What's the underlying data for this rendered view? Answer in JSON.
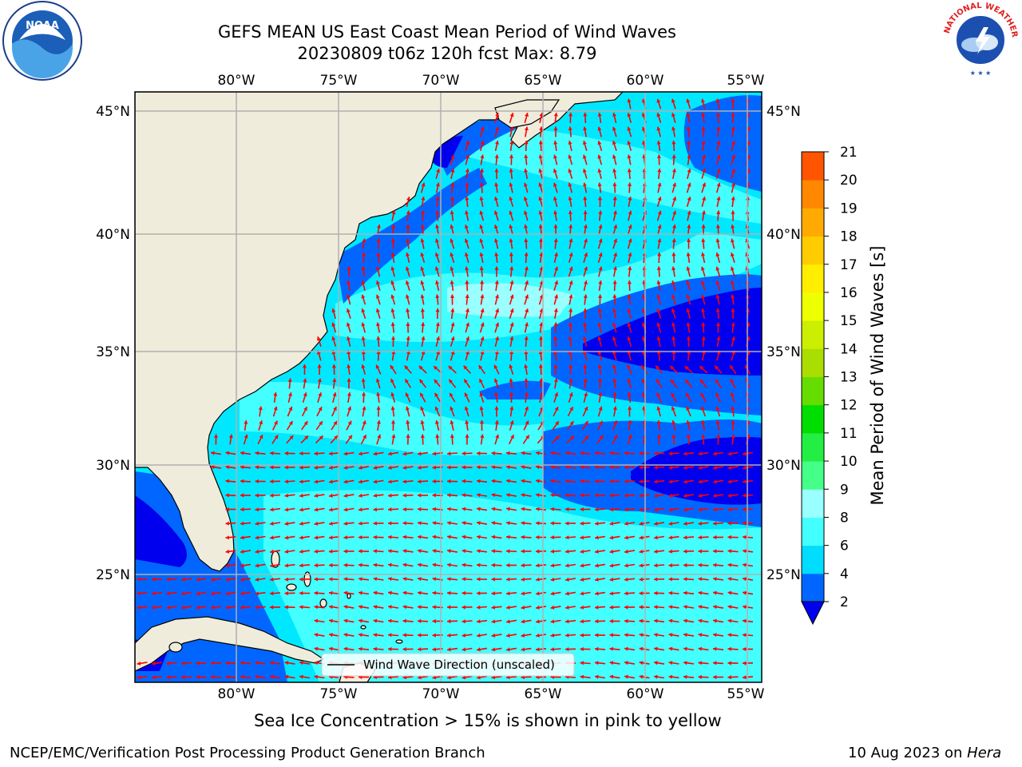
{
  "header": {
    "title_line1": "GEFS MEAN US East Coast Mean Period of Wind Waves",
    "title_line2": "20230809 t06z 120h fcst   Max: 8.79"
  },
  "map": {
    "lon_labels": [
      "80°W",
      "75°W",
      "70°W",
      "65°W",
      "60°W",
      "55°W"
    ],
    "lat_labels": [
      "45°N",
      "40°N",
      "35°N",
      "30°N",
      "25°N"
    ],
    "legend_label": "Wind Wave Direction (unscaled)",
    "arrow_color": "#ff0000",
    "land_color": "#efecdc",
    "grid_color": "#b0b0b0"
  },
  "colorbar": {
    "label": "Mean Period of Wind Waves [s]",
    "ticks": [
      "2",
      "4",
      "6",
      "8",
      "9",
      "10",
      "11",
      "12",
      "13",
      "14",
      "15",
      "16",
      "17",
      "18",
      "19",
      "20",
      "21"
    ],
    "colors": [
      "#0066ff",
      "#00ddff",
      "#44ffff",
      "#99ffff",
      "#44ff88",
      "#22ee44",
      "#00dd00",
      "#66dd00",
      "#aadd00",
      "#ccee00",
      "#eeff00",
      "#ffee00",
      "#ffcc00",
      "#ffaa00",
      "#ff8800",
      "#ff5500",
      "#ff2200",
      "#ff0000"
    ],
    "under_color": "#0000ee"
  },
  "logos": {
    "noaa_text": "NOAA",
    "nws_text": "NATIONAL WEATHER SERVICE"
  },
  "footer": {
    "sea_ice_note": "Sea Ice Concentration > 15% is shown in pink to yellow",
    "branch": "NCEP/EMC/Verification Post Processing Product Generation Branch",
    "date_prefix": "10 Aug 2023 on ",
    "host": "Hera"
  }
}
